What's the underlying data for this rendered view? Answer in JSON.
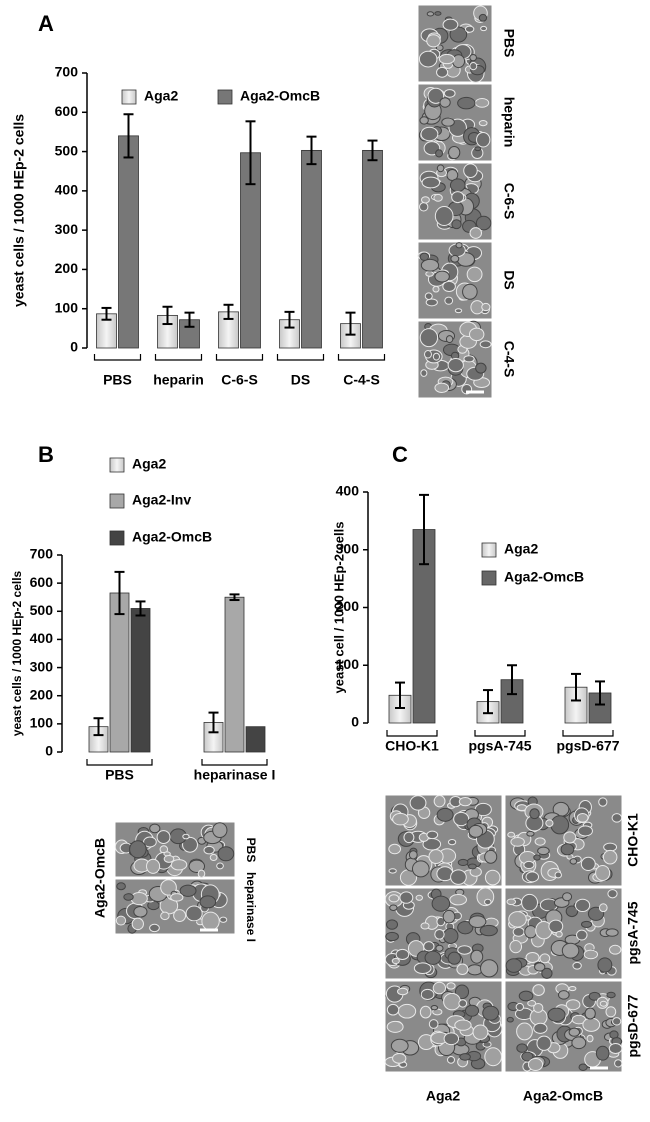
{
  "panels": {
    "a": "A",
    "b": "B",
    "c": "C"
  },
  "chart_data": [
    {
      "type": "bar",
      "ylabel": "yeast cells / 1000 HEp-2 cells",
      "categories": [
        "PBS",
        "heparin",
        "C-6-S",
        "DS",
        "C-4-S"
      ],
      "series": [
        {
          "name": "Aga2",
          "color": "#e0e0e0",
          "values": [
            87,
            83,
            92,
            72,
            62
          ],
          "errors": [
            15,
            22,
            18,
            20,
            28
          ]
        },
        {
          "name": "Aga2-OmcB",
          "color": "#777777",
          "values": [
            540,
            72,
            497,
            503,
            503
          ],
          "errors": [
            55,
            18,
            80,
            35,
            25
          ]
        }
      ],
      "ylim": [
        0,
        700
      ],
      "yticks": [
        0,
        100,
        200,
        300,
        400,
        500,
        600,
        700
      ],
      "legend": "top"
    },
    {
      "type": "bar",
      "ylabel": "yeast cells / 1000 HEp-2 cells",
      "categories": [
        "PBS",
        "heparinase I"
      ],
      "series": [
        {
          "name": "Aga2",
          "color": "#e0e0e0",
          "values": [
            90,
            105
          ],
          "errors": [
            30,
            35
          ]
        },
        {
          "name": "Aga2-Inv",
          "color": "#a8a8a8",
          "values": [
            565,
            550
          ],
          "errors": [
            75,
            10
          ]
        },
        {
          "name": "Aga2-OmcB",
          "color": "#444444",
          "values": [
            510,
            90
          ],
          "errors": [
            25,
            null
          ]
        }
      ],
      "ylim": [
        0,
        700
      ],
      "yticks": [
        0,
        100,
        200,
        300,
        400,
        500,
        600,
        700
      ],
      "legend": "above"
    },
    {
      "type": "bar",
      "ylabel": "yeast cell / 1000 HEp-2 cells",
      "categories": [
        "CHO-K1",
        "pgsA-745",
        "pgsD-677"
      ],
      "series": [
        {
          "name": "Aga2",
          "color": "#e0e0e0",
          "values": [
            48,
            37,
            62
          ],
          "errors": [
            22,
            20,
            23
          ]
        },
        {
          "name": "Aga2-OmcB",
          "color": "#666666",
          "values": [
            335,
            75,
            52
          ],
          "errors": [
            60,
            25,
            20
          ]
        }
      ],
      "ylim": [
        0,
        400
      ],
      "yticks": [
        0,
        100,
        200,
        300,
        400
      ],
      "legend": "upper-right"
    }
  ],
  "micrographs": {
    "a": {
      "rows": [
        "PBS",
        "heparin",
        "C-6-S",
        "DS",
        "C-4-S"
      ]
    },
    "b": {
      "column": "Aga2-OmcB",
      "rows": [
        "PBS",
        "heparinase I"
      ]
    },
    "c": {
      "rows": [
        "CHO-K1",
        "pgsA-745",
        "pgsD-677"
      ],
      "columns": [
        "Aga2",
        "Aga2-OmcB"
      ]
    }
  }
}
